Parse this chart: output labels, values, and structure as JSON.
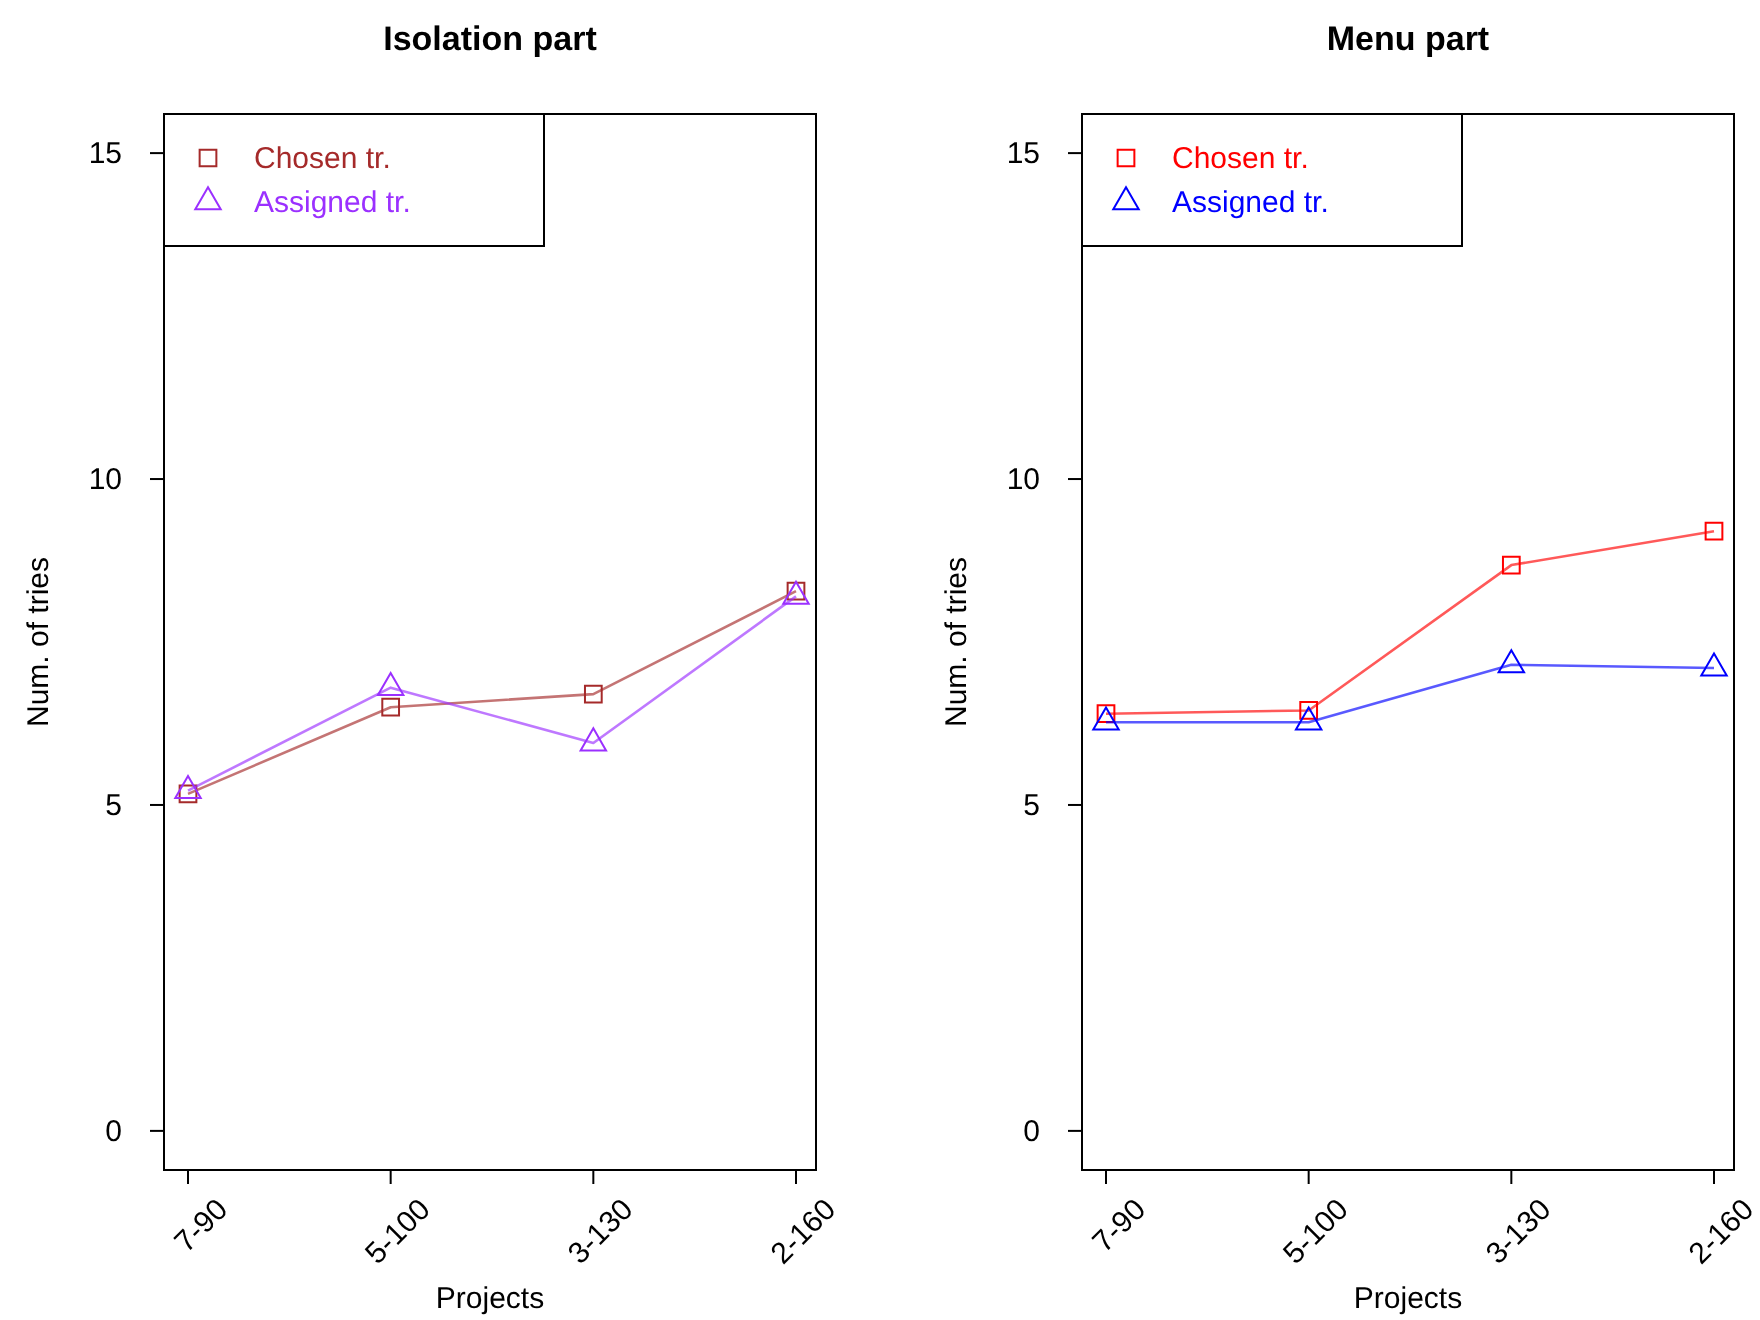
{
  "chart_data": [
    {
      "type": "line",
      "title": "Isolation part",
      "xlabel": "Projects",
      "ylabel": "Num. of tries",
      "categories": [
        "7-90",
        "5-100",
        "3-130",
        "2-160"
      ],
      "ylim": [
        -0.6,
        15.6
      ],
      "yticks": [
        0,
        5,
        10,
        15
      ],
      "legend": "top left",
      "grid": false,
      "series": [
        {
          "name": "Chosen tr.",
          "color": "#a52a2a",
          "marker": "square",
          "values": [
            5.17,
            6.5,
            6.7,
            8.28
          ]
        },
        {
          "name": "Assigned tr.",
          "color": "#9b30ff",
          "marker": "triangle",
          "values": [
            5.22,
            6.8,
            5.95,
            8.2
          ]
        }
      ]
    },
    {
      "type": "line",
      "title": "Menu part",
      "xlabel": "Projects",
      "ylabel": "Num. of tries",
      "categories": [
        "7-90",
        "5-100",
        "3-130",
        "2-160"
      ],
      "ylim": [
        -0.6,
        15.6
      ],
      "yticks": [
        0,
        5,
        10,
        15
      ],
      "legend": "top left",
      "grid": false,
      "series": [
        {
          "name": "Chosen tr.",
          "color": "#ff0000",
          "marker": "square",
          "values": [
            6.4,
            6.45,
            8.68,
            9.2
          ]
        },
        {
          "name": "Assigned tr.",
          "color": "#0000ff",
          "marker": "triangle",
          "values": [
            6.27,
            6.27,
            7.15,
            7.1
          ]
        }
      ]
    }
  ]
}
